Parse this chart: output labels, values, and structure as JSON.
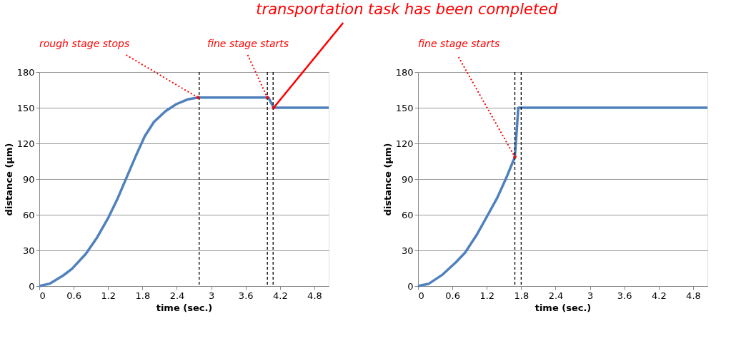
{
  "chart_data": [
    {
      "type": "line",
      "xlabel": "time (sec.)",
      "ylabel": "distance (µm)",
      "xlim": [
        0,
        5.05
      ],
      "ylim": [
        0,
        180
      ],
      "xticks": [
        0,
        0.6,
        1.2,
        1.8,
        2.4,
        3,
        3.6,
        4.2,
        4.8
      ],
      "yticks": [
        0,
        30,
        60,
        90,
        120,
        150,
        180
      ],
      "grid": "y",
      "legend": false,
      "marker": "none",
      "line_style": "solid",
      "series": [
        {
          "color": "#4f81bd",
          "x": [
            0,
            0.18,
            0.42,
            0.57,
            0.81,
            1.01,
            1.21,
            1.37,
            1.52,
            1.68,
            1.84,
            2.0,
            2.2,
            2.39,
            2.59,
            2.77,
            4.0,
            4.09,
            5.05
          ],
          "values": [
            0,
            2,
            9,
            14.5,
            27,
            41,
            58,
            74,
            91,
            109,
            126,
            138,
            147,
            153,
            157,
            158.5,
            158.5,
            150,
            150
          ]
        }
      ],
      "ref_lines": [
        {
          "axis": "x",
          "value": 2.79,
          "color": "#000000",
          "line_style": "dashed"
        },
        {
          "axis": "x",
          "value": 3.98,
          "color": "#000000",
          "line_style": "dashed"
        },
        {
          "axis": "x",
          "value": 4.08,
          "color": "#000000",
          "line_style": "dashed"
        }
      ],
      "annotations": [
        {
          "text": "rough stage stops",
          "x": 2.77,
          "y": 158.5
        },
        {
          "text": "fine stage starts",
          "x": 3.98,
          "y": 158.5
        },
        {
          "text": "transportation task has been completed",
          "x": 4.09,
          "y": 150
        }
      ]
    },
    {
      "type": "line",
      "xlabel": "time (sec.)",
      "ylabel": "distance (µm)",
      "xlim": [
        0,
        5.05
      ],
      "ylim": [
        0,
        180
      ],
      "xticks": [
        0,
        0.6,
        1.2,
        1.8,
        2.4,
        3,
        3.6,
        4.2,
        4.8
      ],
      "yticks": [
        0,
        30,
        60,
        90,
        120,
        150,
        180
      ],
      "grid": "y",
      "legend": false,
      "marker": "none",
      "line_style": "solid",
      "series": [
        {
          "color": "#4f81bd",
          "x": [
            0,
            0.19,
            0.43,
            0.66,
            0.82,
            1.02,
            1.22,
            1.38,
            1.54,
            1.69,
            1.75,
            5.05
          ],
          "values": [
            0,
            2,
            9.7,
            20,
            28,
            42.7,
            60,
            74,
            91,
            108.6,
            150,
            150
          ]
        }
      ],
      "ref_lines": [
        {
          "axis": "x",
          "value": 1.69,
          "color": "#000000",
          "line_style": "dashed"
        },
        {
          "axis": "x",
          "value": 1.8,
          "color": "#000000",
          "line_style": "dashed"
        }
      ],
      "annotations": [
        {
          "text": "fine stage starts",
          "x": 1.69,
          "y": 108.6
        }
      ]
    }
  ]
}
